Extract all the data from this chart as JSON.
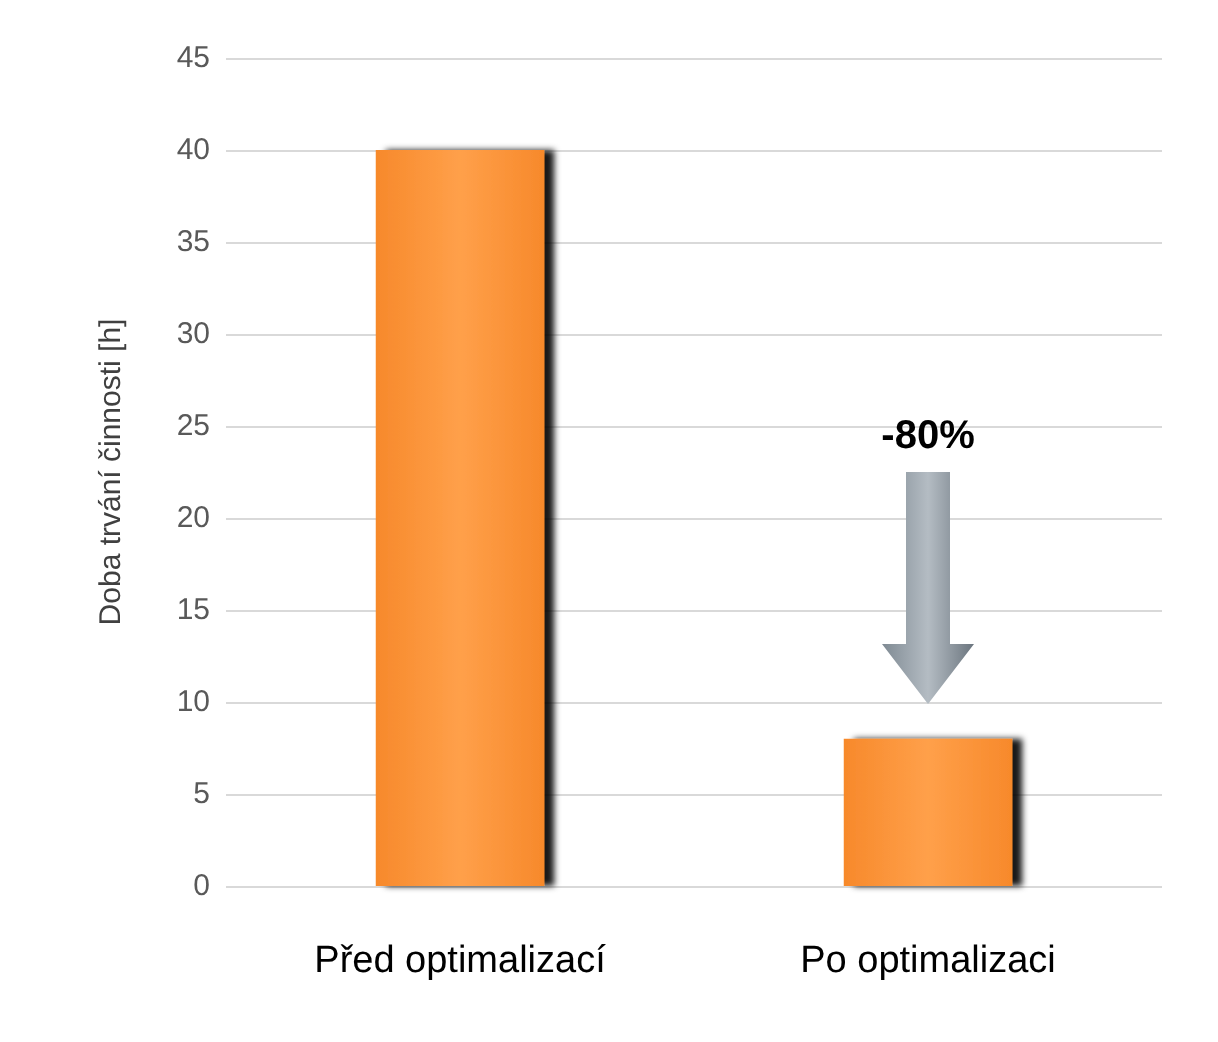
{
  "chart_data": {
    "type": "bar",
    "ylabel": "Doba trvání činnosti [h]",
    "categories": [
      "Před optimalizací",
      "Po optimalizaci"
    ],
    "values": [
      40,
      8
    ],
    "color": "#f7892b",
    "ylim": [
      0,
      45
    ],
    "yticks": [
      0,
      5,
      10,
      15,
      20,
      25,
      30,
      35,
      40,
      45
    ],
    "grid": "y",
    "annotations": [
      "-80%"
    ]
  }
}
